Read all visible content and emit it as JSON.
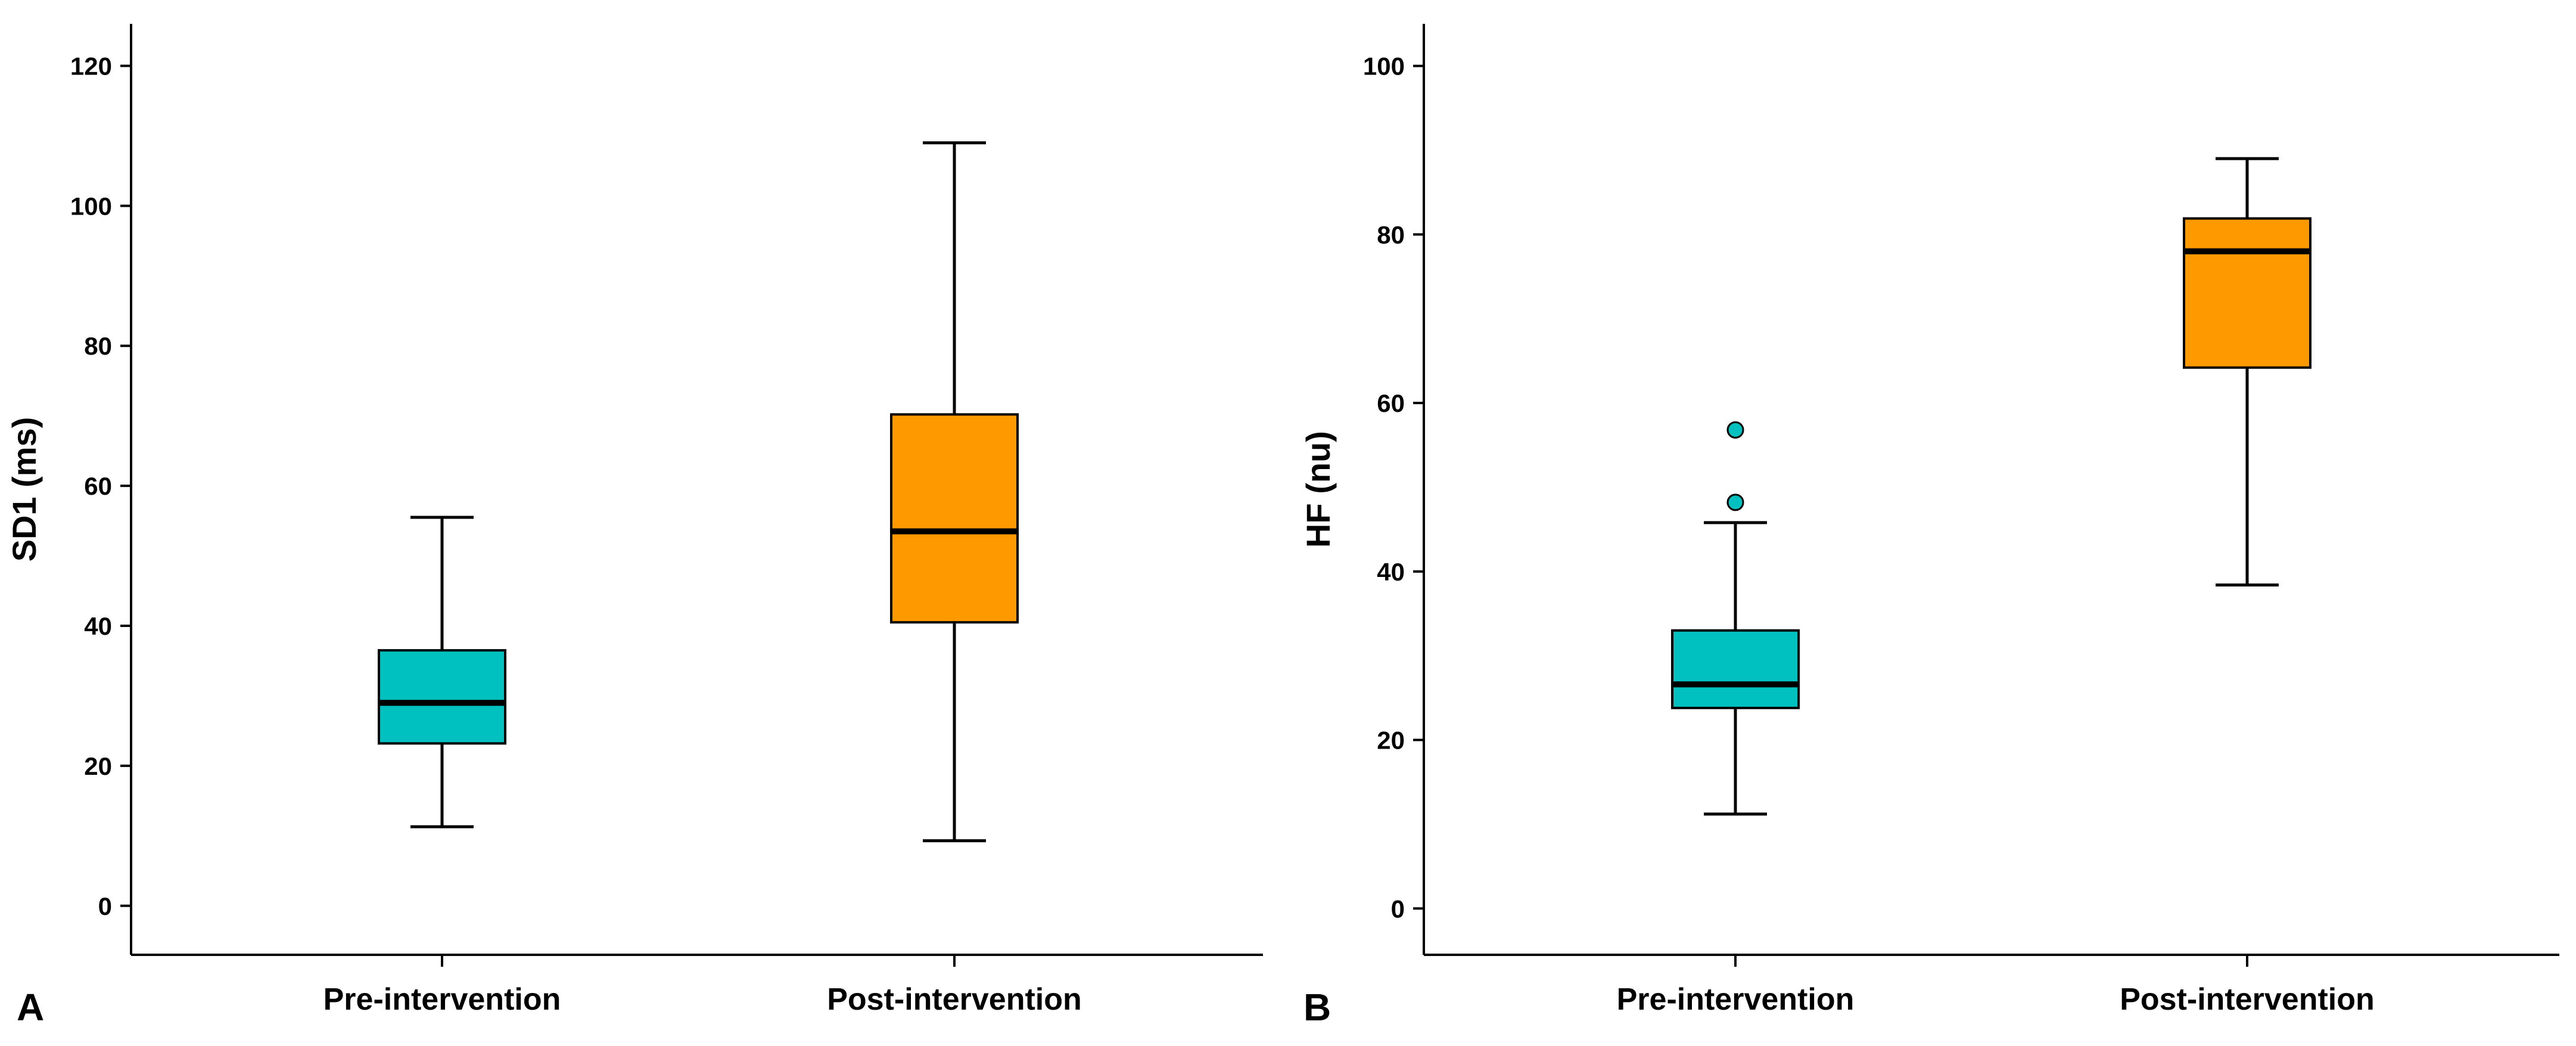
{
  "chart_data": [
    {
      "panel_label": "A",
      "type": "box",
      "ylabel": "SD1 (ms)",
      "xlabel": "",
      "ylim": [
        -7,
        126
      ],
      "yticks": [
        0,
        20,
        40,
        60,
        80,
        100,
        120
      ],
      "categories": [
        "Pre-intervention",
        "Post-intervention"
      ],
      "colors": [
        "#00c0c0",
        "#ff9900"
      ],
      "boxes": [
        {
          "category": "Pre-intervention",
          "min": 11.3,
          "q1": 23.2,
          "median": 29.0,
          "q3": 36.5,
          "max": 55.5,
          "outliers": []
        },
        {
          "category": "Post-intervention",
          "min": 9.3,
          "q1": 40.5,
          "median": 53.5,
          "q3": 70.2,
          "max": 109.0,
          "outliers": []
        }
      ]
    },
    {
      "panel_label": "B",
      "type": "box",
      "ylabel": "HF (nu)",
      "xlabel": "",
      "ylim": [
        -5.5,
        105
      ],
      "yticks": [
        0,
        20,
        40,
        60,
        80,
        100
      ],
      "categories": [
        "Pre-intervention",
        "Post-intervention"
      ],
      "colors": [
        "#00c0c0",
        "#ff9900"
      ],
      "boxes": [
        {
          "category": "Pre-intervention",
          "min": 11.2,
          "q1": 23.8,
          "median": 26.6,
          "q3": 33.0,
          "max": 45.8,
          "outliers": [
            48.2,
            56.8
          ]
        },
        {
          "category": "Post-intervention",
          "min": 38.4,
          "q1": 64.2,
          "median": 78.0,
          "q3": 81.9,
          "max": 89.0,
          "outliers": []
        }
      ]
    }
  ]
}
